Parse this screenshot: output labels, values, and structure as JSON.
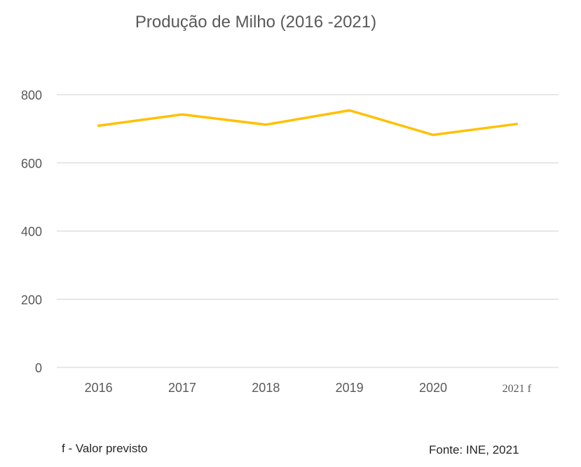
{
  "chart_data": {
    "type": "line",
    "title": "Produção de Milho (2016 -2021)",
    "xlabel": "",
    "ylabel": "",
    "categories": [
      "2016",
      "2017",
      "2018",
      "2019",
      "2020",
      "2021 f"
    ],
    "series": [
      {
        "name": "Produção de Milho",
        "values": [
          709,
          742,
          712,
          754,
          682,
          714
        ],
        "color": "#FFC000"
      }
    ],
    "ylim": [
      0,
      800
    ],
    "yticks": [
      "0",
      "200",
      "400",
      "600",
      "800"
    ],
    "grid": true,
    "legend": "none"
  },
  "footnote": "f - Valor previsto",
  "source": "Fonte: INE, 2021"
}
